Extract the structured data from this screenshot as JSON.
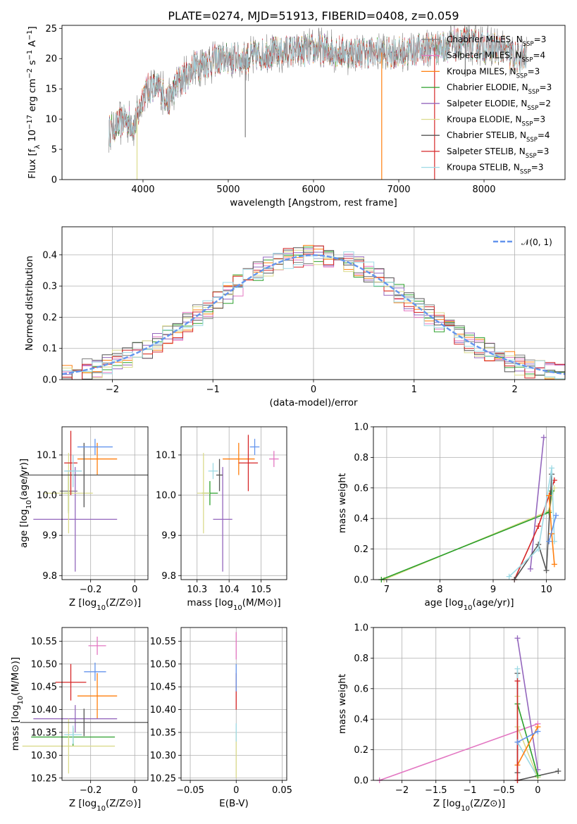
{
  "colors": {
    "Chabrier MILES": "#7f7f7f",
    "Salpeter MILES": "#e377c2",
    "Kroupa MILES": "#ff7f0e",
    "Chabrier ELODIE": "#2ca02c",
    "Salpeter ELODIE": "#9467bd",
    "Kroupa ELODIE": "#dbdb8d",
    "Chabrier STELIB": "#555555",
    "Salpeter STELIB": "#d62728",
    "Kroupa STELIB": "#9edae5",
    "normal_curve": "#6495ed"
  },
  "chart_data": [
    {
      "id": "spectrum",
      "type": "line",
      "title": "PLATE=0274, MJD=51913, FIBERID=0408, z=0.059",
      "xlabel": "wavelength [Angstrom, rest frame]",
      "ylabel": "Flux [f_λ 10^-17 erg cm^-2 s^-1 A^-1]",
      "xlim": [
        3050,
        8950
      ],
      "ylim": [
        0,
        25.5
      ],
      "xticks": [
        4000,
        5000,
        6000,
        7000,
        8000
      ],
      "yticks": [
        0,
        5,
        10,
        15,
        20,
        25
      ],
      "legend_position": "right",
      "legend": [
        {
          "name": "Chabrier MILES",
          "nssp": "3"
        },
        {
          "name": "Salpeter MILES",
          "nssp": "4"
        },
        {
          "name": "Kroupa MILES",
          "nssp": "3"
        },
        {
          "name": "Chabrier ELODIE",
          "nssp": "3"
        },
        {
          "name": "Salpeter ELODIE",
          "nssp": "2"
        },
        {
          "name": "Kroupa ELODIE",
          "nssp": "3"
        },
        {
          "name": "Chabrier STELIB",
          "nssp": "4"
        },
        {
          "name": "Salpeter STELIB",
          "nssp": "3"
        },
        {
          "name": "Kroupa STELIB",
          "nssp": "3"
        }
      ],
      "continuum": {
        "x": [
          3600,
          3700,
          3800,
          3900,
          3950,
          4000,
          4100,
          4200,
          4300,
          4400,
          4500,
          4600,
          4800,
          5000,
          5200,
          5500,
          6000,
          6500,
          7000,
          7500,
          7800,
          8000,
          8200,
          8400,
          8500
        ],
        "y": [
          8,
          9,
          10,
          9,
          11,
          14,
          15.5,
          15,
          13,
          16,
          17,
          18.5,
          19.5,
          20,
          20,
          21,
          21.5,
          21,
          21,
          22,
          22.5,
          22,
          21.5,
          20,
          20
        ]
      },
      "spikes": [
        {
          "x": 3930,
          "y": 0
        },
        {
          "x": 5200,
          "y": 7
        },
        {
          "x": 6800,
          "y": 0
        },
        {
          "x": 7420,
          "y": 0
        },
        {
          "x": 7780,
          "y": 17
        }
      ]
    },
    {
      "id": "residuals",
      "type": "bar",
      "xlabel": "(data-model)/error",
      "ylabel": "Normed distribution",
      "xlim": [
        -2.5,
        2.5
      ],
      "ylim": [
        0,
        0.49
      ],
      "xticks": [
        -2,
        -1,
        0,
        1,
        2
      ],
      "yticks": [
        0.0,
        0.1,
        0.2,
        0.3,
        0.4
      ],
      "grid": true,
      "legend_position": "top-right",
      "legend": "𝒩(0, 1)",
      "bin_width": 0.1
    },
    {
      "id": "age-vs-Z",
      "type": "scatter",
      "xlabel": "Z [log10(Z/Z⊙)]",
      "ylabel": "age [log10(age/yr)]",
      "xlim": [
        -0.33,
        0.06
      ],
      "ylim": [
        9.79,
        10.17
      ],
      "xticks": [
        -0.2,
        0.0
      ],
      "yticks": [
        9.8,
        9.9,
        10.0,
        10.1
      ],
      "grid": true,
      "points": [
        {
          "model": "Chabrier MILES",
          "x": -0.3,
          "y": 10.01,
          "ex": 0.04,
          "ey": 0.05
        },
        {
          "model": "Salpeter MILES",
          "x": -0.28,
          "y": 10.06,
          "ex": 0.03,
          "ey": 0.04
        },
        {
          "model": "Kroupa MILES",
          "x": -0.17,
          "y": 10.09,
          "ex": 0.09,
          "ey": 0.04
        },
        {
          "model": "Chabrier ELODIE",
          "x": -0.3,
          "y": 10.005,
          "ex": 0.02,
          "ey": 0.05
        },
        {
          "model": "Salpeter ELODIE",
          "x": -0.27,
          "y": 9.94,
          "ex": 0.19,
          "ey": 0.13
        },
        {
          "model": "Kroupa ELODIE",
          "x": -0.3,
          "y": 10.005,
          "ex": 0.11,
          "ey": 0.1
        },
        {
          "model": "Chabrier STELIB",
          "x": -0.23,
          "y": 10.05,
          "ex": 0.29,
          "ey": 0.08
        },
        {
          "model": "Salpeter STELIB",
          "x": -0.29,
          "y": 10.08,
          "ex": 0.03,
          "ey": 0.08
        },
        {
          "model": "Kroupa STELIB",
          "x": -0.28,
          "y": 10.06,
          "ex": 0.04,
          "ey": 0.04
        },
        {
          "model": "Blue",
          "x": -0.18,
          "y": 10.12,
          "ex": 0.08,
          "ey": 0.02,
          "color": "#6495ed"
        }
      ]
    },
    {
      "id": "age-vs-mass",
      "type": "scatter",
      "xlabel": "mass [log10(M/M⊙)]",
      "xlim": [
        10.25,
        10.58
      ],
      "ylim": [
        9.79,
        10.17
      ],
      "xticks": [
        10.3,
        10.4,
        10.5
      ],
      "yticks": [
        9.8,
        9.9,
        10.0,
        10.1
      ],
      "grid": true,
      "points": [
        {
          "model": "Salpeter MILES",
          "x": 10.54,
          "y": 10.09,
          "ex": 0.015,
          "ey": 0.02
        },
        {
          "model": "Kroupa MILES",
          "x": 10.43,
          "y": 10.09,
          "ex": 0.05,
          "ey": 0.04
        },
        {
          "model": "Chabrier ELODIE",
          "x": 10.34,
          "y": 10.005,
          "ex": 0.025,
          "ey": 0.03
        },
        {
          "model": "Salpeter ELODIE",
          "x": 10.38,
          "y": 9.94,
          "ex": 0.03,
          "ey": 0.13
        },
        {
          "model": "Kroupa ELODIE",
          "x": 10.32,
          "y": 10.005,
          "ex": 0.02,
          "ey": 0.1
        },
        {
          "model": "Chabrier STELIB",
          "x": 10.37,
          "y": 10.05,
          "ex": 0.01,
          "ey": 0.04
        },
        {
          "model": "Salpeter STELIB",
          "x": 10.46,
          "y": 10.08,
          "ex": 0.03,
          "ey": 0.07
        },
        {
          "model": "Kroupa STELIB",
          "x": 10.35,
          "y": 10.06,
          "ex": 0.015,
          "ey": 0.02
        },
        {
          "model": "Blue",
          "x": 10.48,
          "y": 10.12,
          "ex": 0.015,
          "ey": 0.02,
          "color": "#6495ed"
        }
      ]
    },
    {
      "id": "weight-vs-age",
      "type": "line",
      "xlabel": "age [log10(age/yr)]",
      "ylabel": "mass weight",
      "xlim": [
        6.75,
        10.35
      ],
      "ylim": [
        0,
        1.0
      ],
      "xticks": [
        7,
        8,
        9,
        10
      ],
      "yticks": [
        0.0,
        0.2,
        0.4,
        0.6,
        0.8,
        1.0
      ],
      "grid": true,
      "series": [
        {
          "model": "Kroupa ELODIE",
          "x": [
            6.95,
            10.05,
            10.15
          ],
          "y": [
            0.0,
            0.45,
            0.6
          ]
        },
        {
          "model": "Chabrier ELODIE",
          "x": [
            6.9,
            10.05,
            10.1
          ],
          "y": [
            0.0,
            0.44,
            0.58
          ]
        },
        {
          "model": "Salpeter ELODIE",
          "x": [
            9.7,
            9.95
          ],
          "y": [
            0.07,
            0.93
          ]
        },
        {
          "model": "Salpeter STELIB",
          "x": [
            9.4,
            9.85,
            10.15
          ],
          "y": [
            0.0,
            0.35,
            0.65
          ]
        },
        {
          "model": "Chabrier STELIB",
          "x": [
            9.4,
            9.85,
            10.0,
            10.1
          ],
          "y": [
            0.0,
            0.23,
            0.06,
            0.69
          ]
        },
        {
          "model": "Kroupa STELIB",
          "x": [
            9.3,
            9.85,
            10.1,
            10.15
          ],
          "y": [
            0.02,
            0.2,
            0.73,
            0.25
          ]
        },
        {
          "model": "Kroupa MILES",
          "x": [
            10.05,
            10.1,
            10.15
          ],
          "y": [
            0.55,
            0.3,
            0.1
          ]
        },
        {
          "model": "Blue",
          "x": [
            10.05,
            10.18
          ],
          "y": [
            0.25,
            0.42
          ],
          "color": "#6495ed"
        }
      ]
    },
    {
      "id": "mass-vs-Z",
      "type": "scatter",
      "xlabel": "Z [log10(Z/Z⊙)]",
      "ylabel": "mass [log10(M/M⊙)]",
      "xlim": [
        -0.33,
        0.06
      ],
      "ylim": [
        10.245,
        10.58
      ],
      "xticks": [
        -0.2,
        0.0
      ],
      "yticks": [
        10.25,
        10.3,
        10.35,
        10.4,
        10.45,
        10.5,
        10.55
      ],
      "grid": true,
      "points": [
        {
          "model": "Salpeter MILES",
          "x": -0.17,
          "y": 10.54,
          "ex": 0.04,
          "ey": 0.02
        },
        {
          "model": "Kroupa MILES",
          "x": -0.17,
          "y": 10.43,
          "ex": 0.09,
          "ey": 0.05
        },
        {
          "model": "Chabrier ELODIE",
          "x": -0.28,
          "y": 10.34,
          "ex": 0.19,
          "ey": 0.02
        },
        {
          "model": "Salpeter ELODIE",
          "x": -0.27,
          "y": 10.38,
          "ex": 0.19,
          "ey": 0.03
        },
        {
          "model": "Kroupa ELODIE",
          "x": -0.3,
          "y": 10.32,
          "ex": 0.21,
          "ey": 0.06
        },
        {
          "model": "Chabrier STELIB",
          "x": -0.23,
          "y": 10.372,
          "ex": 0.29,
          "ey": 0.03
        },
        {
          "model": "Salpeter STELIB",
          "x": -0.29,
          "y": 10.46,
          "ex": 0.07,
          "ey": 0.04
        },
        {
          "model": "Kroupa STELIB",
          "x": -0.28,
          "y": 10.345,
          "ex": 0.04,
          "ey": 0.02
        },
        {
          "model": "Blue",
          "x": -0.18,
          "y": 10.483,
          "ex": 0.05,
          "ey": 0.02,
          "color": "#6495ed"
        }
      ]
    },
    {
      "id": "mass-vs-ebv",
      "type": "scatter",
      "xlabel": "E(B-V)",
      "xlim": [
        -0.06,
        0.055
      ],
      "ylim": [
        10.245,
        10.58
      ],
      "xticks": [
        -0.05,
        0.0,
        0.05
      ],
      "yticks": [
        10.25,
        10.3,
        10.35,
        10.4,
        10.45,
        10.5,
        10.55
      ],
      "grid": true,
      "points": [
        {
          "model": "Salpeter MILES",
          "x": 0.0,
          "y": 10.54,
          "ex": 0.0,
          "ey": 0.03
        },
        {
          "model": "Kroupa ELODIE",
          "x": 0.0,
          "y": 10.3,
          "ex": 0.0,
          "ey": 0.05
        },
        {
          "model": "Kroupa STELIB",
          "x": 0.0,
          "y": 10.35,
          "ex": 0.0,
          "ey": 0.02
        },
        {
          "model": "Salpeter STELIB",
          "x": 0.0,
          "y": 10.44,
          "ex": 0.0,
          "ey": 0.04
        },
        {
          "model": "Blue",
          "x": 0.0,
          "y": 10.47,
          "ex": 0.0,
          "ey": 0.03,
          "color": "#6495ed"
        }
      ]
    },
    {
      "id": "weight-vs-Z",
      "type": "line",
      "xlabel": "Z [log10(Z/Z⊙)]",
      "ylabel": "mass weight",
      "xlim": [
        -2.42,
        0.4
      ],
      "ylim": [
        0,
        1.0
      ],
      "xticks": [
        -2.0,
        -1.5,
        -1.0,
        -0.5,
        0.0
      ],
      "yticks": [
        0.0,
        0.2,
        0.4,
        0.6,
        0.8,
        1.0
      ],
      "grid": true,
      "series": [
        {
          "model": "Salpeter MILES",
          "x": [
            -2.33,
            0.0
          ],
          "y": [
            0.0,
            0.37
          ]
        },
        {
          "model": "Salpeter ELODIE",
          "x": [
            -0.3,
            0.0
          ],
          "y": [
            0.93,
            0.07
          ]
        },
        {
          "model": "Chabrier STELIB",
          "x": [
            -0.3,
            0.3
          ],
          "y": [
            0.0,
            0.06
          ]
        },
        {
          "model": "Chabrier STELIB",
          "x": [
            -0.3,
            -0.3
          ],
          "y": [
            0.05,
            0.7
          ]
        },
        {
          "model": "Kroupa STELIB",
          "x": [
            -0.3,
            -0.3,
            0.0
          ],
          "y": [
            0.73,
            0.25,
            0.02
          ]
        },
        {
          "model": "Kroupa ELODIE",
          "x": [
            -0.3,
            -0.3,
            0.0
          ],
          "y": [
            0.55,
            0.35,
            0.02
          ]
        },
        {
          "model": "Chabrier ELODIE",
          "x": [
            -0.3,
            0.0
          ],
          "y": [
            0.5,
            0.03
          ]
        },
        {
          "model": "Kroupa MILES",
          "x": [
            -0.3,
            0.0
          ],
          "y": [
            0.1,
            0.35
          ]
        },
        {
          "model": "Salpeter STELIB",
          "x": [
            -0.3,
            -0.3
          ],
          "y": [
            0.0,
            0.65
          ]
        },
        {
          "model": "Blue",
          "x": [
            -0.3,
            0.0
          ],
          "y": [
            0.25,
            0.32
          ],
          "color": "#6495ed"
        }
      ]
    }
  ]
}
